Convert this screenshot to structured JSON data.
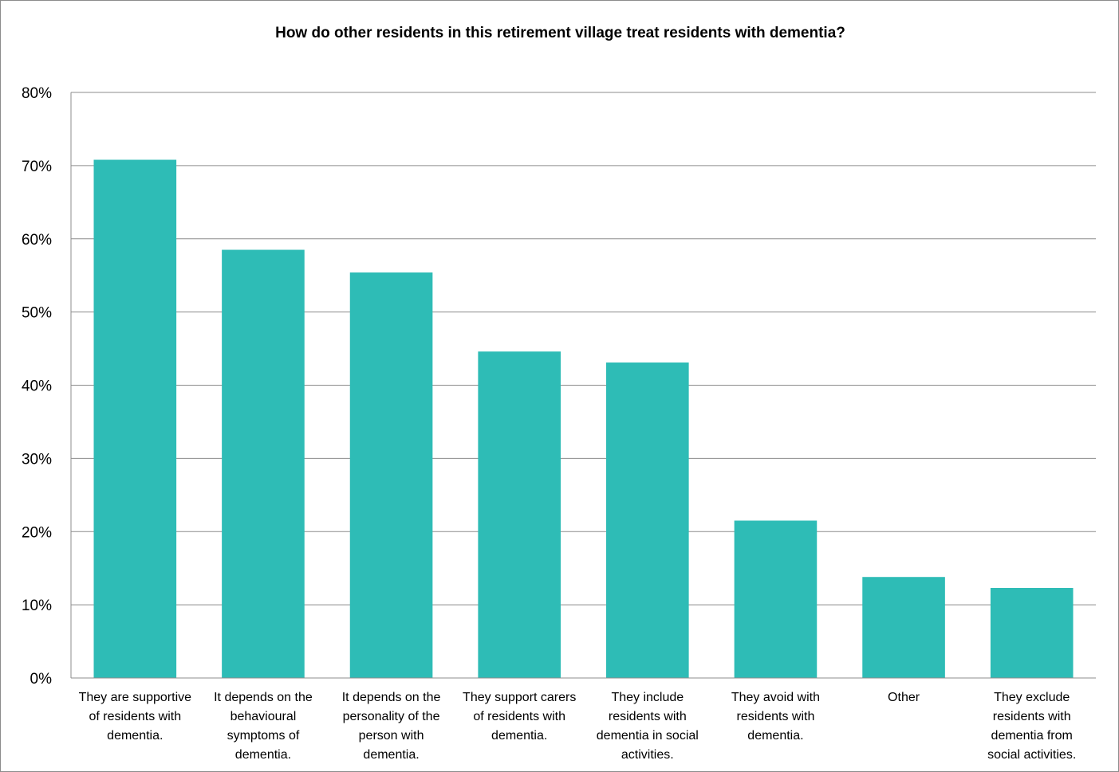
{
  "chart_data": {
    "type": "bar",
    "title": "How do other residents in this retirement village treat residents with dementia?",
    "xlabel": "",
    "ylabel": "",
    "ylim": [
      0,
      80
    ],
    "yticks": [
      "0%",
      "10%",
      "20%",
      "30%",
      "40%",
      "50%",
      "60%",
      "70%",
      "80%"
    ],
    "grid": true,
    "bar_color": "#2ebcb6",
    "categories": [
      [
        "They are supportive",
        "of residents with",
        "dementia."
      ],
      [
        "It depends on the",
        "behavioural",
        "symptoms of",
        "dementia."
      ],
      [
        "It depends on the",
        "personality of the",
        "person with",
        "dementia."
      ],
      [
        "They support carers",
        "of residents with",
        "dementia."
      ],
      [
        "They include",
        "residents with",
        "dementia in social",
        "activities."
      ],
      [
        "They avoid with",
        "residents with",
        "dementia."
      ],
      [
        "Other"
      ],
      [
        "They exclude",
        "residents with",
        "dementia from",
        "social activities."
      ]
    ],
    "values": [
      70.8,
      58.5,
      55.4,
      44.6,
      43.1,
      21.5,
      13.8,
      12.3
    ]
  }
}
